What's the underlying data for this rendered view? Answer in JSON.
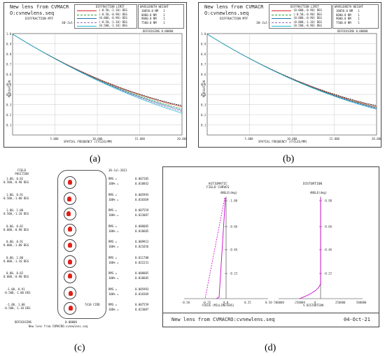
{
  "a": {
    "title": "New lens from CVMACR",
    "file": "O:cvnewlens.seq",
    "kind": "DIFFRACTION MTF",
    "date": "30-Jul-21",
    "legend_header": "DIFFRACTION LIMIT",
    "legend_items": [
      "(-0.50,-1.10) DEG",
      "(-0.50,-0.90) DEG",
      "(0.000,-0.90) DEG",
      "(-0.50,-1.10) DEG",
      "(0.500,-1.10) DEG"
    ],
    "legend_colors": [
      "#d62728",
      "#2ca02c",
      "#1f77b4",
      "#9467bd",
      "#17becf"
    ],
    "wl_header": "WAVELENGTH  WEIGHT",
    "wavelengths": [
      "10050.0 NM   1",
      "8000.0 NM    1",
      "9000.0 NM    1",
      "7500.0 NM    1"
    ],
    "defocus": "DEFOCUSING  0.00000",
    "yticks": [
      "1.0",
      "0.9",
      "0.8",
      "0.7",
      "0.6",
      "0.5",
      "0.4",
      "0.3",
      "0.2",
      "0.1"
    ],
    "xticks": [
      "5.000",
      "10.000",
      "15.000",
      "20.000"
    ],
    "ylabel": "MODULATION",
    "xlabel": "SPATIAL FREQUENCY (CYCLES/MM)"
  },
  "b": {
    "title": "New lens from CVMACR",
    "file": "O:cvnewlens.seq",
    "kind": "DIFFRACTION MTF",
    "date": "30-Jul-21",
    "legend_header": "DIFFRACTION LIMIT",
    "legend_items": [
      "(0.000,-0.90) DEG",
      "(-0.50,-0.90) DEG",
      "(0.000,-0.90) DEG",
      "(0.000,-1.10) DEG",
      "(0.500,-0.90) DEG"
    ],
    "legend_colors": [
      "#d62728",
      "#2ca02c",
      "#1f77b4",
      "#9467bd",
      "#17becf"
    ],
    "wl_header": "WAVELENGTH  WEIGHT",
    "wavelengths": [
      "10050.0 NM   1",
      "8000.0 NM    1",
      "9000.0 NM    1",
      "7500.0 NM    1"
    ],
    "defocus": "DEFOCUSING  0.00000",
    "yticks": [
      "1.0",
      "0.9",
      "0.8",
      "0.7",
      "0.6",
      "0.5",
      "0.4",
      "0.3",
      "0.2",
      "0.1"
    ],
    "xticks": [
      "5.000",
      "10.000",
      "15.000",
      "20.000"
    ],
    "ylabel": "MODULATION",
    "xlabel": "SPATIAL FREQUENCY (CYCLES/MM)"
  },
  "c": {
    "header": "FIELD\nPOSITION",
    "date": "30-Jul-2021",
    "fields": [
      [
        "1.00, 0.82",
        "0.500,-0.90 DEG"
      ],
      [
        "1.00, 0.91",
        "0.500,-1.00 DEG"
      ],
      [
        "1.00, 1.00",
        "0.500,-1.10 DEG"
      ],
      [
        "0.00, 0.82",
        "0.000,-0.90 DEG"
      ],
      [
        "0.00, 0.91",
        "0.000,-1.00 DEG"
      ],
      [
        "0.00, 1.00",
        "0.000,-1.10 DEG"
      ],
      [
        "0.00, 0.82",
        "0.000,-0.90 DEG"
      ],
      [
        "-1.00, 0.91",
        "-0.500,-1.00 DEG"
      ],
      [
        "-1.00, 1.00",
        "-0.500,-1.10 DEG"
      ]
    ],
    "rms": [
      [
        "0.007205",
        "0.018842"
      ],
      [
        "0.005993",
        "0.018369"
      ],
      [
        "0.007559",
        "0.023087"
      ],
      [
        "0.008085",
        "0.018605"
      ],
      [
        "0.009913",
        "0.021656"
      ],
      [
        "0.011788",
        "0.022231"
      ],
      [
        "0.008085",
        "0.018605"
      ],
      [
        "0.005993",
        "0.018369"
      ],
      [
        "0.007559",
        "0.023087"
      ]
    ],
    "rms_label": "RMS =",
    "pct_label": "100% =",
    "defocus_label": "DEFOCUSING",
    "defocus_value": "0.00000",
    "footer": "New lens from CVMACRO:cvnewlens.seq",
    "stamp": "7418 CIRD"
  },
  "d": {
    "astig_title": "ASTIGMATIC\nFIELD CURVES",
    "dist_title": "DISTORTION",
    "angle_label": "ANGLE(deg)",
    "astig_yticks": [
      "-1.00",
      "-0.66",
      "-0.46",
      "-0.23"
    ],
    "dist_yticks": [
      "-0.98",
      "-0.66",
      "-0.46",
      "-0.22"
    ],
    "astig_xticks": [
      "-0.50",
      "-0.25",
      "0.0",
      "0.25",
      "0.50"
    ],
    "dist_xticks": [
      "-500000",
      "-250000",
      "0",
      "250000",
      "500000"
    ],
    "astig_xlabel": "FOCUS (MILLIMETERS)",
    "dist_xlabel": "% DISTORTION",
    "footer": "New lens from CVMACRO:cvnewlens.seq",
    "date": "04-Oct-21",
    "line_color": "#cc00cc"
  },
  "captions": [
    "(a)",
    "(b)",
    "(c)",
    "(d)"
  ]
}
